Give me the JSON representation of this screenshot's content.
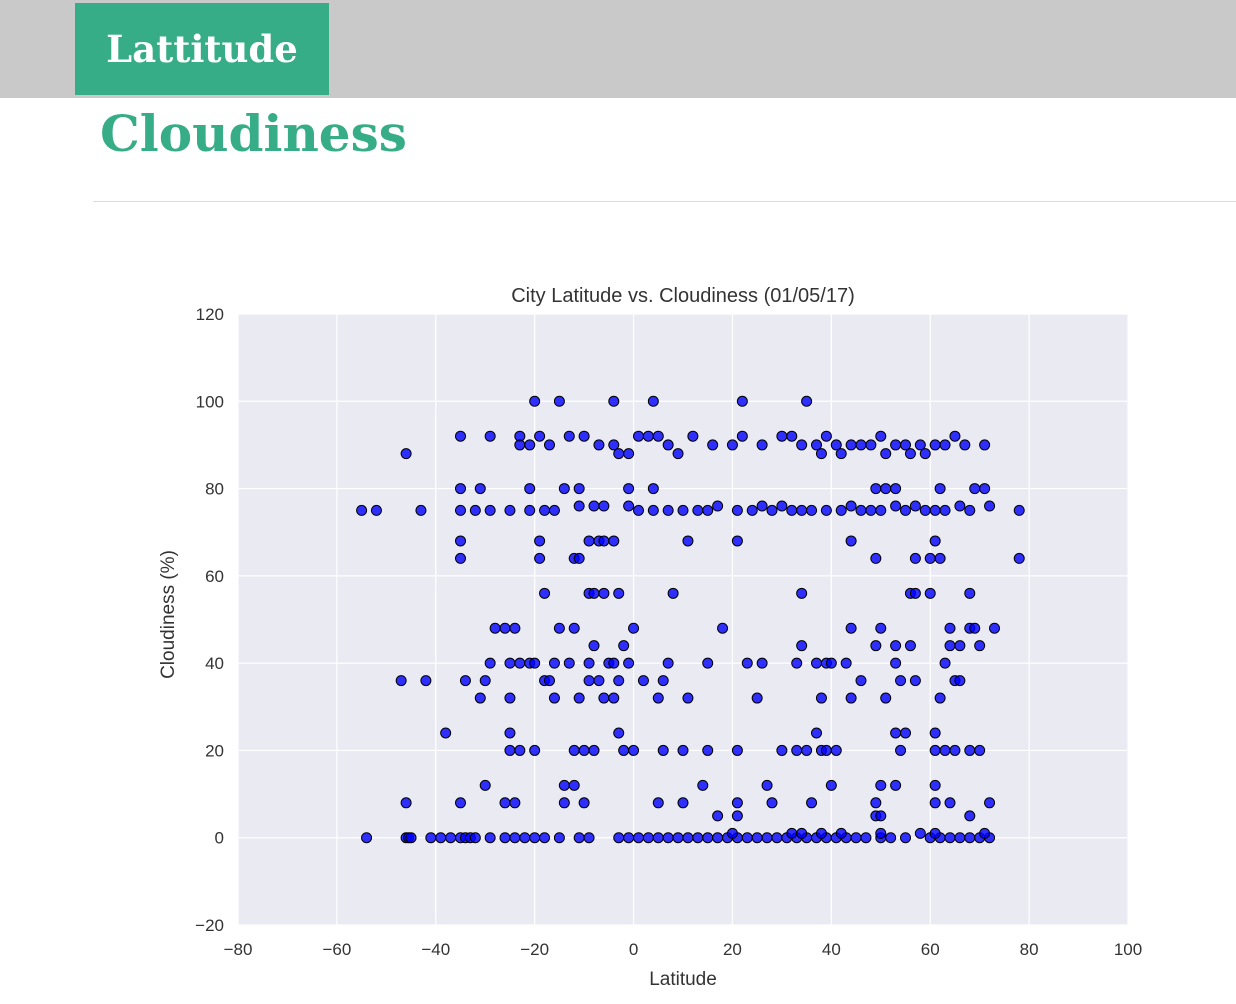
{
  "nav": {
    "tab_label": "Lattitude"
  },
  "page": {
    "title": "Cloudiness"
  },
  "colors": {
    "accent": "#36ad86",
    "topbar": "#c8c9c8",
    "plot_bg": "#eaeaf2",
    "marker": "#0000ff"
  },
  "chart_data": {
    "type": "scatter",
    "title": "City Latitude vs. Cloudiness (01/05/17)",
    "xlabel": "Latitude",
    "ylabel": "Cloudiness (%)",
    "xlim": [
      -80,
      100
    ],
    "ylim": [
      -20,
      120
    ],
    "xticks": [
      -80,
      -60,
      -40,
      -20,
      0,
      20,
      40,
      60,
      80,
      100
    ],
    "yticks": [
      -20,
      0,
      20,
      40,
      60,
      80,
      100,
      120
    ],
    "grid": true,
    "series": [
      {
        "points": [
          [
            -54,
            0
          ],
          [
            -46,
            0
          ],
          [
            -45.5,
            0
          ],
          [
            -45,
            0
          ],
          [
            -41,
            0
          ],
          [
            -39,
            0
          ],
          [
            -37,
            0
          ],
          [
            -35,
            0
          ],
          [
            -34,
            0
          ],
          [
            -33,
            0
          ],
          [
            -32,
            0
          ],
          [
            -29,
            0
          ],
          [
            -26,
            0
          ],
          [
            -24,
            0
          ],
          [
            -22,
            0
          ],
          [
            -20,
            0
          ],
          [
            -18,
            0
          ],
          [
            -15,
            0
          ],
          [
            -11,
            0
          ],
          [
            -9,
            0
          ],
          [
            -3,
            0
          ],
          [
            -1,
            0
          ],
          [
            1,
            0
          ],
          [
            3,
            0
          ],
          [
            5,
            0
          ],
          [
            7,
            0
          ],
          [
            9,
            0
          ],
          [
            11,
            0
          ],
          [
            13,
            0
          ],
          [
            15,
            0
          ],
          [
            17,
            0
          ],
          [
            19,
            0
          ],
          [
            21,
            0
          ],
          [
            23,
            0
          ],
          [
            25,
            0
          ],
          [
            27,
            0
          ],
          [
            29,
            0
          ],
          [
            31,
            0
          ],
          [
            33,
            0
          ],
          [
            35,
            0
          ],
          [
            37,
            0
          ],
          [
            39,
            0
          ],
          [
            41,
            0
          ],
          [
            43,
            0
          ],
          [
            45,
            0
          ],
          [
            47,
            0
          ],
          [
            50,
            0
          ],
          [
            52,
            0
          ],
          [
            55,
            0
          ],
          [
            60,
            0
          ],
          [
            62,
            0
          ],
          [
            64,
            0
          ],
          [
            66,
            0
          ],
          [
            68,
            0
          ],
          [
            70,
            0
          ],
          [
            72,
            0
          ],
          [
            20,
            1
          ],
          [
            32,
            1
          ],
          [
            34,
            1
          ],
          [
            38,
            1
          ],
          [
            42,
            1
          ],
          [
            50,
            1
          ],
          [
            58,
            1
          ],
          [
            61,
            1
          ],
          [
            71,
            1
          ],
          [
            -46,
            8
          ],
          [
            -35,
            8
          ],
          [
            -30,
            12
          ],
          [
            -26,
            8
          ],
          [
            -24,
            8
          ],
          [
            -14,
            12
          ],
          [
            -14,
            8
          ],
          [
            -12,
            12
          ],
          [
            -10,
            8
          ],
          [
            10,
            8
          ],
          [
            5,
            8
          ],
          [
            14,
            12
          ],
          [
            17,
            5
          ],
          [
            21,
            8
          ],
          [
            21,
            5
          ],
          [
            27,
            12
          ],
          [
            28,
            8
          ],
          [
            36,
            8
          ],
          [
            40,
            12
          ],
          [
            49,
            5
          ],
          [
            50,
            12
          ],
          [
            49,
            8
          ],
          [
            50,
            5
          ],
          [
            53,
            12
          ],
          [
            61,
            12
          ],
          [
            61,
            8
          ],
          [
            64,
            8
          ],
          [
            68,
            5
          ],
          [
            72,
            8
          ],
          [
            -38,
            24
          ],
          [
            -25,
            24
          ],
          [
            -25,
            20
          ],
          [
            -23,
            20
          ],
          [
            -20,
            20
          ],
          [
            -12,
            20
          ],
          [
            -10,
            20
          ],
          [
            -8,
            20
          ],
          [
            -3,
            24
          ],
          [
            -2,
            20
          ],
          [
            0,
            20
          ],
          [
            6,
            20
          ],
          [
            10,
            20
          ],
          [
            15,
            20
          ],
          [
            21,
            20
          ],
          [
            30,
            20
          ],
          [
            33,
            20
          ],
          [
            35,
            20
          ],
          [
            37,
            24
          ],
          [
            38,
            20
          ],
          [
            39,
            20
          ],
          [
            41,
            20
          ],
          [
            53,
            24
          ],
          [
            54,
            20
          ],
          [
            55,
            24
          ],
          [
            61,
            24
          ],
          [
            61,
            20
          ],
          [
            63,
            20
          ],
          [
            65,
            20
          ],
          [
            68,
            20
          ],
          [
            70,
            20
          ],
          [
            -47,
            36
          ],
          [
            -42,
            36
          ],
          [
            -34,
            36
          ],
          [
            -31,
            32
          ],
          [
            -30,
            36
          ],
          [
            -29,
            40
          ],
          [
            -28,
            48
          ],
          [
            -26,
            48
          ],
          [
            -25,
            40
          ],
          [
            -25,
            32
          ],
          [
            -24,
            48
          ],
          [
            -23,
            40
          ],
          [
            -21,
            40
          ],
          [
            -20,
            40
          ],
          [
            -18,
            36
          ],
          [
            -17,
            36
          ],
          [
            -16,
            32
          ],
          [
            -16,
            40
          ],
          [
            -15,
            48
          ],
          [
            -13,
            40
          ],
          [
            -12,
            48
          ],
          [
            -11,
            32
          ],
          [
            -9,
            40
          ],
          [
            -9,
            36
          ],
          [
            -8,
            44
          ],
          [
            -7,
            36
          ],
          [
            -6,
            32
          ],
          [
            -5,
            40
          ],
          [
            -4,
            40
          ],
          [
            -4,
            32
          ],
          [
            -3,
            36
          ],
          [
            -2,
            44
          ],
          [
            -1,
            40
          ],
          [
            0,
            48
          ],
          [
            2,
            36
          ],
          [
            5,
            32
          ],
          [
            6,
            36
          ],
          [
            7,
            40
          ],
          [
            11,
            32
          ],
          [
            15,
            40
          ],
          [
            18,
            48
          ],
          [
            23,
            40
          ],
          [
            25,
            32
          ],
          [
            26,
            40
          ],
          [
            33,
            40
          ],
          [
            34,
            44
          ],
          [
            37,
            40
          ],
          [
            38,
            32
          ],
          [
            39,
            40
          ],
          [
            40,
            40
          ],
          [
            43,
            40
          ],
          [
            44,
            48
          ],
          [
            44,
            32
          ],
          [
            46,
            36
          ],
          [
            49,
            44
          ],
          [
            50,
            48
          ],
          [
            51,
            32
          ],
          [
            53,
            40
          ],
          [
            53,
            44
          ],
          [
            54,
            36
          ],
          [
            56,
            44
          ],
          [
            57,
            36
          ],
          [
            62,
            32
          ],
          [
            63,
            40
          ],
          [
            64,
            48
          ],
          [
            64,
            44
          ],
          [
            65,
            36
          ],
          [
            66,
            44
          ],
          [
            66,
            36
          ],
          [
            68,
            48
          ],
          [
            69,
            48
          ],
          [
            70,
            44
          ],
          [
            73,
            48
          ],
          [
            -18,
            56
          ],
          [
            -9,
            56
          ],
          [
            -8,
            56
          ],
          [
            -6,
            56
          ],
          [
            -3,
            56
          ],
          [
            8,
            56
          ],
          [
            34,
            56
          ],
          [
            56,
            56
          ],
          [
            57,
            56
          ],
          [
            60,
            56
          ],
          [
            68,
            56
          ],
          [
            -35,
            68
          ],
          [
            -35,
            64
          ],
          [
            -19,
            68
          ],
          [
            -19,
            64
          ],
          [
            -12,
            64
          ],
          [
            -11,
            64
          ],
          [
            -9,
            68
          ],
          [
            -7,
            68
          ],
          [
            -6,
            68
          ],
          [
            -4,
            68
          ],
          [
            11,
            68
          ],
          [
            21,
            68
          ],
          [
            44,
            68
          ],
          [
            49,
            64
          ],
          [
            57,
            64
          ],
          [
            60,
            64
          ],
          [
            61,
            68
          ],
          [
            62,
            64
          ],
          [
            78,
            64
          ],
          [
            -55,
            75
          ],
          [
            -52,
            75
          ],
          [
            -43,
            75
          ],
          [
            -35,
            75
          ],
          [
            -32,
            75
          ],
          [
            -29,
            75
          ],
          [
            -25,
            75
          ],
          [
            -21,
            75
          ],
          [
            -18,
            75
          ],
          [
            -16,
            75
          ],
          [
            -11,
            76
          ],
          [
            -8,
            76
          ],
          [
            -6,
            76
          ],
          [
            -1,
            76
          ],
          [
            1,
            75
          ],
          [
            4,
            75
          ],
          [
            7,
            75
          ],
          [
            10,
            75
          ],
          [
            13,
            75
          ],
          [
            15,
            75
          ],
          [
            17,
            76
          ],
          [
            21,
            75
          ],
          [
            24,
            75
          ],
          [
            26,
            76
          ],
          [
            28,
            75
          ],
          [
            30,
            76
          ],
          [
            32,
            75
          ],
          [
            34,
            75
          ],
          [
            36,
            75
          ],
          [
            39,
            75
          ],
          [
            42,
            75
          ],
          [
            44,
            76
          ],
          [
            46,
            75
          ],
          [
            48,
            75
          ],
          [
            50,
            75
          ],
          [
            53,
            76
          ],
          [
            55,
            75
          ],
          [
            57,
            76
          ],
          [
            59,
            75
          ],
          [
            61,
            75
          ],
          [
            63,
            75
          ],
          [
            66,
            76
          ],
          [
            68,
            75
          ],
          [
            72,
            76
          ],
          [
            78,
            75
          ],
          [
            -35,
            80
          ],
          [
            -31,
            80
          ],
          [
            -21,
            80
          ],
          [
            -14,
            80
          ],
          [
            -11,
            80
          ],
          [
            -1,
            80
          ],
          [
            4,
            80
          ],
          [
            49,
            80
          ],
          [
            51,
            80
          ],
          [
            53,
            80
          ],
          [
            62,
            80
          ],
          [
            69,
            80
          ],
          [
            71,
            80
          ],
          [
            -46,
            88
          ],
          [
            -35,
            92
          ],
          [
            -29,
            92
          ],
          [
            -23,
            92
          ],
          [
            -23,
            90
          ],
          [
            -21,
            90
          ],
          [
            -19,
            92
          ],
          [
            -17,
            90
          ],
          [
            -13,
            92
          ],
          [
            -10,
            92
          ],
          [
            -7,
            90
          ],
          [
            -4,
            90
          ],
          [
            -3,
            88
          ],
          [
            -1,
            88
          ],
          [
            1,
            92
          ],
          [
            3,
            92
          ],
          [
            5,
            92
          ],
          [
            7,
            90
          ],
          [
            9,
            88
          ],
          [
            12,
            92
          ],
          [
            16,
            90
          ],
          [
            20,
            90
          ],
          [
            22,
            92
          ],
          [
            26,
            90
          ],
          [
            30,
            92
          ],
          [
            32,
            92
          ],
          [
            34,
            90
          ],
          [
            37,
            90
          ],
          [
            38,
            88
          ],
          [
            39,
            92
          ],
          [
            41,
            90
          ],
          [
            42,
            88
          ],
          [
            44,
            90
          ],
          [
            46,
            90
          ],
          [
            48,
            90
          ],
          [
            50,
            92
          ],
          [
            51,
            88
          ],
          [
            53,
            90
          ],
          [
            55,
            90
          ],
          [
            56,
            88
          ],
          [
            58,
            90
          ],
          [
            59,
            88
          ],
          [
            61,
            90
          ],
          [
            63,
            90
          ],
          [
            65,
            92
          ],
          [
            67,
            90
          ],
          [
            71,
            90
          ],
          [
            -20,
            100
          ],
          [
            -15,
            100
          ],
          [
            -4,
            100
          ],
          [
            4,
            100
          ],
          [
            22,
            100
          ],
          [
            35,
            100
          ]
        ]
      }
    ]
  }
}
